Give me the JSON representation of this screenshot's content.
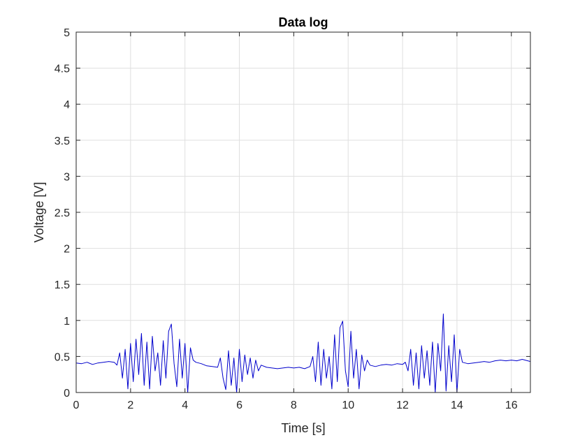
{
  "chart_data": {
    "type": "line",
    "title": "Data log",
    "xlabel": "Time [s]",
    "ylabel": "Voltage [V]",
    "xlim": [
      0,
      16.7
    ],
    "ylim": [
      0,
      5
    ],
    "xticks": [
      0,
      2,
      4,
      6,
      8,
      10,
      12,
      14,
      16
    ],
    "xtick_labels": [
      "0",
      "2",
      "4",
      "6",
      "8",
      "10",
      "12",
      "14",
      "16"
    ],
    "yticks": [
      0,
      0.5,
      1,
      1.5,
      2,
      2.5,
      3,
      3.5,
      4,
      4.5,
      5
    ],
    "ytick_labels": [
      "0",
      "0.5",
      "1",
      "1.5",
      "2",
      "2.5",
      "3",
      "3.5",
      "4",
      "4.5",
      "5"
    ],
    "grid": true,
    "series": [
      {
        "color": "#0000cc",
        "x": [
          0,
          0.2,
          0.4,
          0.6,
          0.8,
          1.0,
          1.2,
          1.4,
          1.5,
          1.6,
          1.7,
          1.8,
          1.9,
          2.0,
          2.1,
          2.2,
          2.3,
          2.4,
          2.5,
          2.6,
          2.7,
          2.8,
          2.9,
          3.0,
          3.1,
          3.2,
          3.3,
          3.4,
          3.5,
          3.6,
          3.7,
          3.8,
          3.9,
          4.0,
          4.1,
          4.2,
          4.3,
          4.4,
          4.6,
          4.8,
          5.0,
          5.2,
          5.3,
          5.4,
          5.5,
          5.6,
          5.7,
          5.8,
          5.9,
          6.0,
          6.1,
          6.2,
          6.3,
          6.4,
          6.5,
          6.6,
          6.7,
          6.8,
          7.0,
          7.2,
          7.4,
          7.6,
          7.8,
          8.0,
          8.2,
          8.4,
          8.6,
          8.7,
          8.8,
          8.9,
          9.0,
          9.1,
          9.2,
          9.3,
          9.4,
          9.5,
          9.6,
          9.7,
          9.8,
          9.9,
          10.0,
          10.1,
          10.2,
          10.3,
          10.4,
          10.5,
          10.6,
          10.7,
          10.8,
          11.0,
          11.2,
          11.4,
          11.6,
          11.8,
          12.0,
          12.1,
          12.2,
          12.3,
          12.4,
          12.5,
          12.6,
          12.7,
          12.8,
          12.9,
          13.0,
          13.1,
          13.2,
          13.3,
          13.4,
          13.5,
          13.6,
          13.7,
          13.8,
          13.9,
          14.0,
          14.1,
          14.2,
          14.4,
          14.6,
          14.8,
          15.0,
          15.2,
          15.4,
          15.6,
          15.8,
          16.0,
          16.2,
          16.4,
          16.7
        ],
        "y": [
          0.41,
          0.4,
          0.42,
          0.39,
          0.41,
          0.42,
          0.43,
          0.42,
          0.38,
          0.55,
          0.2,
          0.6,
          0.05,
          0.68,
          0.15,
          0.74,
          0.25,
          0.82,
          0.1,
          0.7,
          0.05,
          0.78,
          0.3,
          0.55,
          0.1,
          0.72,
          0.2,
          0.85,
          0.95,
          0.4,
          0.08,
          0.74,
          0.2,
          0.68,
          0.0,
          0.62,
          0.45,
          0.42,
          0.4,
          0.37,
          0.36,
          0.35,
          0.48,
          0.2,
          0.04,
          0.58,
          0.1,
          0.48,
          0.0,
          0.6,
          0.15,
          0.52,
          0.25,
          0.48,
          0.2,
          0.45,
          0.3,
          0.38,
          0.35,
          0.34,
          0.33,
          0.34,
          0.35,
          0.34,
          0.35,
          0.33,
          0.36,
          0.5,
          0.15,
          0.7,
          0.1,
          0.6,
          0.2,
          0.5,
          0.05,
          0.8,
          0.15,
          0.9,
          0.99,
          0.3,
          0.08,
          0.85,
          0.2,
          0.6,
          0.05,
          0.52,
          0.3,
          0.45,
          0.38,
          0.36,
          0.38,
          0.39,
          0.38,
          0.4,
          0.39,
          0.42,
          0.3,
          0.6,
          0.1,
          0.55,
          0.05,
          0.65,
          0.2,
          0.58,
          0.1,
          0.7,
          0.0,
          0.68,
          0.3,
          1.09,
          0.02,
          0.65,
          0.15,
          0.8,
          0.0,
          0.6,
          0.42,
          0.4,
          0.41,
          0.42,
          0.43,
          0.42,
          0.44,
          0.45,
          0.44,
          0.45,
          0.44,
          0.46,
          0.43
        ]
      }
    ]
  }
}
